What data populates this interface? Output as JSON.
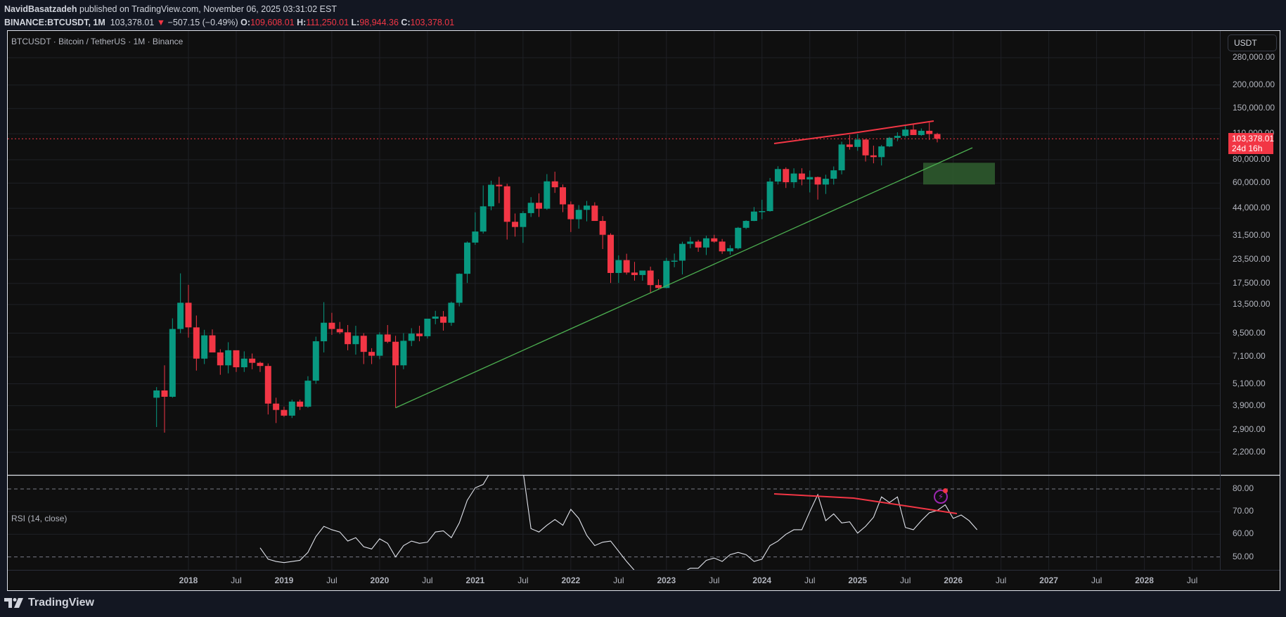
{
  "header": {
    "author": "NavidBasatzadeh",
    "published_text": " published on TradingView.com, November 06, 2025 03:31:02 EST",
    "symbol_line": "BINANCE:BTCUSDT, 1M",
    "last_price": "103,378.01",
    "change_icon": "▼",
    "change": "−507.15 (−0.49%)",
    "open_label": "O:",
    "open": "109,608.01",
    "high_label": "H:",
    "high": "111,250.01",
    "low_label": "L:",
    "low": "98,944.36",
    "close_label": "C:",
    "close": "103,378.01"
  },
  "chart": {
    "title": "BTCUSDT · Bitcoin / TetherUS · 1M · Binance",
    "currency_button": "USDT",
    "price_tag": {
      "price": "103,378.01",
      "countdown": "24d 16h"
    },
    "rsi_title": "RSI (14, close)",
    "footer_brand": "TradingView"
  },
  "colors": {
    "up": "#089981",
    "down": "#f23645",
    "trendline_support": "#4caf50",
    "trendline_resistance": "#f23645",
    "zone": "#2e5a2e",
    "rsi_line": "#e0e3eb",
    "background": "#0f0f0f"
  },
  "chart_data": [
    {
      "type": "candlestick",
      "title": "BTCUSDT · Bitcoin / TetherUS · 1M · Binance",
      "scale": "log",
      "yaxis_ticks": [
        "280,000.00",
        "200,000.00",
        "150,000.00",
        "110,000.00",
        "80,000.00",
        "60,000.00",
        "44,000.00",
        "31,500.00",
        "23,500.00",
        "17,500.00",
        "13,500.00",
        "9,500.00",
        "7,100.00",
        "5,100.00",
        "3,900.00",
        "2,900.00",
        "2,200.00"
      ],
      "xaxis_ticks": [
        "2018",
        "Jul",
        "2019",
        "Jul",
        "2020",
        "Jul",
        "2021",
        "Jul",
        "2022",
        "Jul",
        "2023",
        "Jul",
        "2024",
        "Jul",
        "2025",
        "Jul",
        "2026",
        "Jul",
        "2027",
        "Jul",
        "2028",
        "Jul"
      ],
      "current_price": 103378.01,
      "annotations": [
        {
          "type": "trendline",
          "color": "green",
          "from": [
            "2020-03",
            3800
          ],
          "to": [
            "2026-02",
            88000
          ]
        },
        {
          "type": "trendline",
          "color": "red",
          "points": [
            [
              "2024-03",
              73000
            ],
            [
              "2024-12",
              108000
            ],
            [
              "2025-10",
              126000
            ]
          ]
        },
        {
          "type": "rectangle",
          "color": "green",
          "x": [
            "2025-11",
            "2026-05"
          ],
          "y": [
            59000,
            77000
          ]
        }
      ],
      "candles_ohlc": [
        [
          4300,
          4900,
          3000,
          4700
        ],
        [
          4700,
          6400,
          2800,
          4350
        ],
        [
          4350,
          11400,
          4300,
          10000
        ],
        [
          10000,
          19800,
          9500,
          13800
        ],
        [
          13800,
          17200,
          9000,
          10200
        ],
        [
          10200,
          11800,
          6000,
          6950
        ],
        [
          6950,
          9900,
          6500,
          9250
        ],
        [
          9250,
          9950,
          8000,
          7500
        ],
        [
          7500,
          7800,
          5700,
          6400
        ],
        [
          6400,
          8500,
          5800,
          7700
        ],
        [
          7700,
          7400,
          5900,
          6250
        ],
        [
          6250,
          7600,
          5900,
          6950
        ],
        [
          6950,
          7400,
          6100,
          6600
        ],
        [
          6600,
          6700,
          5900,
          6350
        ],
        [
          6350,
          6550,
          3500,
          4000
        ],
        [
          4000,
          4300,
          3150,
          3700
        ],
        [
          3700,
          3850,
          3400,
          3450
        ],
        [
          3450,
          4200,
          3350,
          4100
        ],
        [
          4100,
          4200,
          3700,
          3850
        ],
        [
          3850,
          5600,
          3800,
          5300
        ],
        [
          5300,
          9100,
          5100,
          8600
        ],
        [
          8600,
          13900,
          7500,
          10800
        ],
        [
          10800,
          12200,
          9300,
          10000
        ],
        [
          10000,
          10900,
          9400,
          9600
        ],
        [
          9600,
          10500,
          7700,
          8300
        ],
        [
          8300,
          10400,
          7300,
          9200
        ],
        [
          9200,
          9500,
          6500,
          7550
        ],
        [
          7550,
          7900,
          6500,
          7200
        ],
        [
          7200,
          9600,
          6900,
          9350
        ],
        [
          9350,
          10500,
          8400,
          8550
        ],
        [
          8550,
          9200,
          3800,
          6400
        ],
        [
          6400,
          9500,
          6100,
          8650
        ],
        [
          8650,
          10100,
          8100,
          9450
        ],
        [
          9450,
          10400,
          8600,
          9150
        ],
        [
          9150,
          9800,
          8900,
          11350
        ],
        [
          11350,
          12500,
          10600,
          11650
        ],
        [
          11650,
          12470,
          9800,
          10800
        ],
        [
          10800,
          14000,
          10400,
          13800
        ],
        [
          13800,
          19800,
          13200,
          19700
        ],
        [
          19700,
          29300,
          17600,
          28900
        ],
        [
          28900,
          41900,
          28100,
          33100
        ],
        [
          33100,
          58300,
          32300,
          45100
        ],
        [
          45100,
          61800,
          43000,
          58800
        ],
        [
          58800,
          64800,
          46900,
          57700
        ],
        [
          57700,
          59500,
          30000,
          37300
        ],
        [
          37300,
          41300,
          31100,
          35000
        ],
        [
          35000,
          42500,
          28800,
          41500
        ],
        [
          41500,
          50500,
          39600,
          47100
        ],
        [
          47100,
          52900,
          39600,
          43800
        ],
        [
          43800,
          67000,
          43200,
          61300
        ],
        [
          61300,
          69000,
          53200,
          57000
        ],
        [
          57000,
          59000,
          42000,
          46200
        ],
        [
          46200,
          47900,
          32900,
          38500
        ],
        [
          38500,
          45800,
          34300,
          43200
        ],
        [
          43200,
          48200,
          37500,
          45500
        ],
        [
          45500,
          47400,
          37700,
          37700
        ],
        [
          37700,
          40000,
          26700,
          31800
        ],
        [
          31800,
          32400,
          17600,
          19900
        ],
        [
          19900,
          24700,
          17600,
          23300
        ],
        [
          23300,
          25200,
          19500,
          20000
        ],
        [
          20000,
          22800,
          18100,
          19400
        ],
        [
          19400,
          20500,
          18100,
          20500
        ],
        [
          20500,
          21500,
          15500,
          17150
        ],
        [
          17150,
          18400,
          16300,
          16550
        ],
        [
          16550,
          23950,
          16500,
          23100
        ],
        [
          23100,
          25250,
          21350,
          23150
        ],
        [
          23150,
          29200,
          19550,
          28450
        ],
        [
          28450,
          31000,
          26950,
          29250
        ],
        [
          29250,
          29900,
          25800,
          27200
        ],
        [
          27200,
          31450,
          24800,
          30450
        ],
        [
          30450,
          31800,
          28850,
          29250
        ],
        [
          29250,
          30200,
          25150,
          25950
        ],
        [
          25950,
          28000,
          24900,
          26950
        ],
        [
          26950,
          35000,
          26550,
          34650
        ],
        [
          34650,
          38000,
          34100,
          37700
        ],
        [
          37700,
          44700,
          37600,
          42300
        ],
        [
          42300,
          48900,
          38500,
          42550
        ],
        [
          42550,
          63900,
          42250,
          61150
        ],
        [
          61150,
          73800,
          59000,
          71300
        ],
        [
          71300,
          72800,
          56500,
          60650
        ],
        [
          60650,
          71950,
          56550,
          67500
        ],
        [
          67500,
          72000,
          58400,
          62750
        ],
        [
          62750,
          70000,
          53500,
          64600
        ],
        [
          64600,
          65000,
          49000,
          58950
        ],
        [
          58950,
          66500,
          52500,
          63300
        ],
        [
          63300,
          73600,
          58900,
          70200
        ],
        [
          70200,
          99800,
          66800,
          96400
        ],
        [
          96400,
          108400,
          90500,
          93550
        ],
        [
          93550,
          109600,
          89200,
          102400
        ],
        [
          102400,
          102750,
          78200,
          84350
        ],
        [
          84350,
          95000,
          76500,
          82550
        ],
        [
          82550,
          95800,
          74500,
          94150
        ],
        [
          94150,
          105800,
          93300,
          104600
        ],
        [
          104600,
          112000,
          100400,
          107150
        ],
        [
          107150,
          123200,
          105200,
          115750
        ],
        [
          115750,
          123500,
          111900,
          108250
        ],
        [
          108250,
          117400,
          107300,
          114050
        ],
        [
          114050,
          126200,
          102000,
          109600
        ],
        [
          109608.01,
          111250.01,
          98944.36,
          103378.01
        ]
      ]
    },
    {
      "type": "line",
      "title": "RSI (14, close)",
      "ylim": [
        45,
        85
      ],
      "yaxis_ticks": [
        "80.00",
        "70.00",
        "60.00",
        "50.00"
      ],
      "bands": [
        80,
        50
      ],
      "annotations": [
        {
          "type": "trendline",
          "color": "red",
          "points": [
            [
              "2024-03",
              78
            ],
            [
              "2024-12",
              77
            ],
            [
              "2026-01",
              69
            ]
          ]
        }
      ],
      "values_from_2018_10": [
        54,
        49,
        48,
        47.5,
        48,
        48.5,
        52,
        59,
        63.5,
        62,
        61,
        57,
        58.5,
        54.5,
        53.5,
        58,
        56,
        50,
        55,
        57,
        56,
        56.5,
        61,
        61.5,
        58.5,
        65,
        75,
        80.5,
        82,
        88,
        95,
        97,
        95,
        88,
        62.5,
        61,
        64,
        66.5,
        64,
        71,
        67,
        59.5,
        55,
        56.5,
        57,
        52.5,
        48,
        44,
        38,
        32,
        30,
        32,
        37,
        43,
        45,
        45,
        48.5,
        49.5,
        48,
        51,
        52,
        51,
        48,
        49,
        55,
        57,
        60,
        62,
        62,
        70,
        77.5,
        66,
        69,
        65,
        65.5,
        60.5,
        63.5,
        67.5,
        76.5,
        74,
        76.5,
        63,
        62,
        66,
        69.5,
        70.5,
        73,
        67,
        68.5,
        66,
        62
      ]
    }
  ]
}
